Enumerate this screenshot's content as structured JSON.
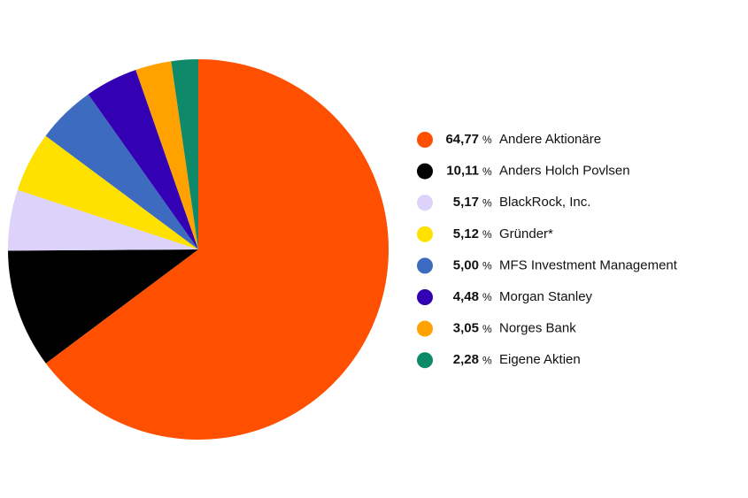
{
  "chart_data": {
    "type": "pie",
    "categories": [
      "Andere Aktionäre",
      "Anders Holch Povlsen",
      "BlackRock, Inc.",
      "Gründer*",
      "MFS Investment Management",
      "Morgan Stanley",
      "Norges Bank",
      "Eigene Aktien"
    ],
    "values": [
      64.77,
      10.11,
      5.17,
      5.12,
      5.0,
      4.48,
      3.05,
      2.28
    ],
    "value_labels": [
      "64,77",
      "10,11",
      "5,17",
      "5,12",
      "5,00",
      "4,48",
      "3,05",
      "2,28"
    ],
    "value_suffix": "%",
    "colors": [
      "#ff4f00",
      "#000000",
      "#dcd2fa",
      "#ffe100",
      "#3d6bbf",
      "#3300b3",
      "#ffa200",
      "#0e8a6a"
    ],
    "start_angle": 0,
    "direction": "clockwise"
  }
}
